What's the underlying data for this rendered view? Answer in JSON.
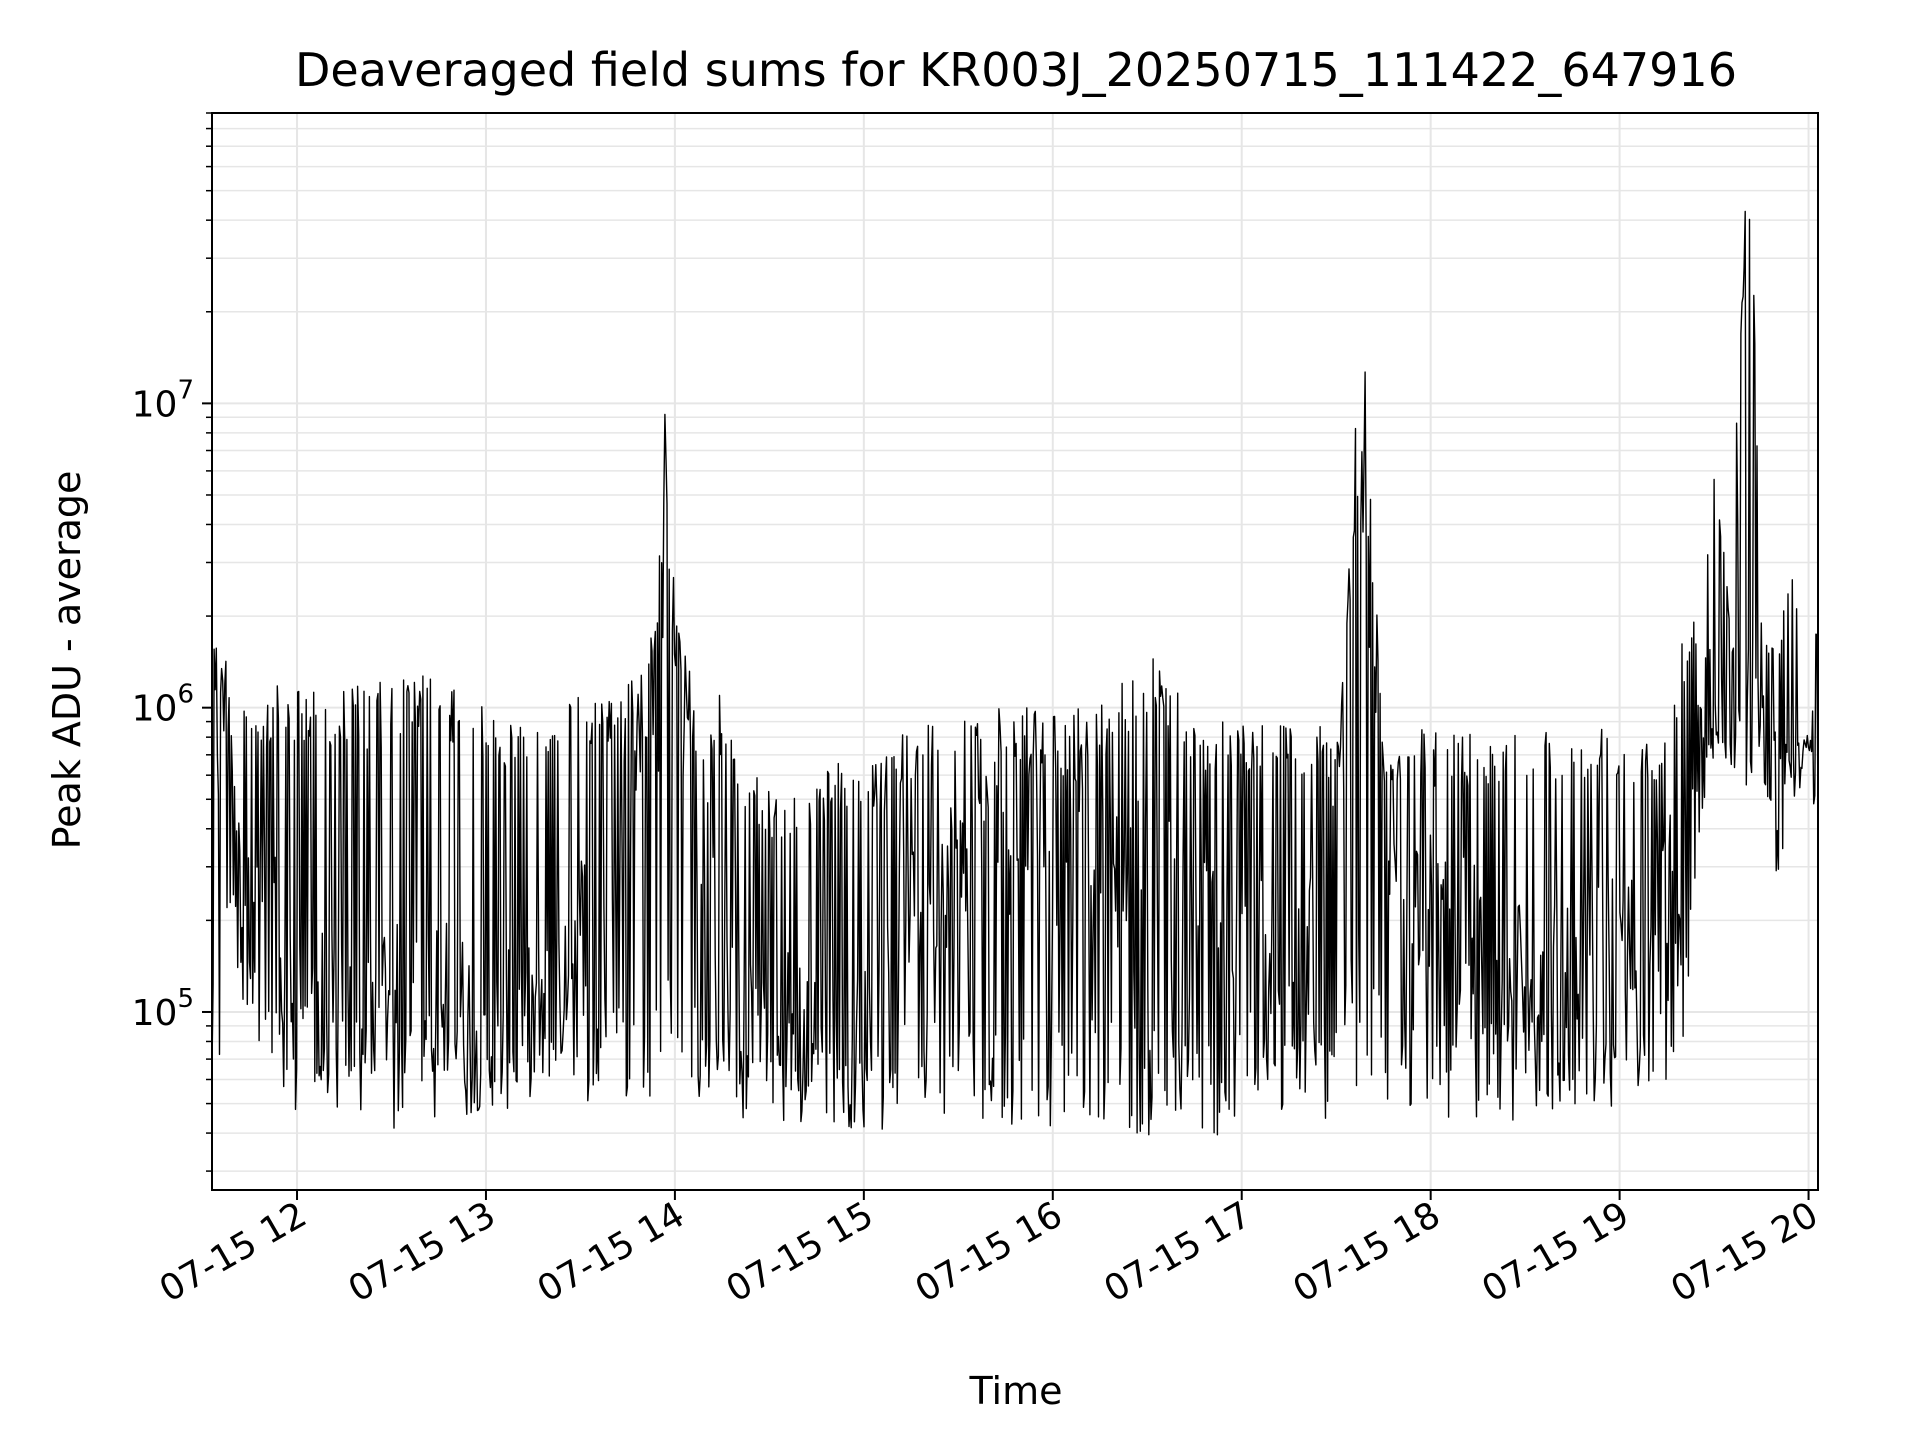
{
  "chart_data": {
    "type": "line",
    "title": "Deaveraged field sums for KR003J_20250715_111422_647916",
    "xlabel": "Time",
    "ylabel": "Peak ADU - average",
    "xlim": [
      "2025-07-15 11:33",
      "2025-07-15 20:03"
    ],
    "ylim": [
      26000,
      90000000
    ],
    "yscale": "log",
    "grid": true,
    "legend": "none",
    "colors": {
      "line": "#000000",
      "grid": "#e6e6e6",
      "axes": "#000000",
      "background": "#ffffff"
    },
    "x_ticks": [
      {
        "value": "2025-07-15 12:00",
        "label": "07-15 12"
      },
      {
        "value": "2025-07-15 13:00",
        "label": "07-15 13"
      },
      {
        "value": "2025-07-15 14:00",
        "label": "07-15 14"
      },
      {
        "value": "2025-07-15 15:00",
        "label": "07-15 15"
      },
      {
        "value": "2025-07-15 16:00",
        "label": "07-15 16"
      },
      {
        "value": "2025-07-15 17:00",
        "label": "07-15 17"
      },
      {
        "value": "2025-07-15 18:00",
        "label": "07-15 18"
      },
      {
        "value": "2025-07-15 19:00",
        "label": "07-15 19"
      },
      {
        "value": "2025-07-15 20:00",
        "label": "07-15 20"
      }
    ],
    "y_ticks": [
      {
        "value": 100000,
        "base": "10",
        "exp": "5"
      },
      {
        "value": 1000000,
        "base": "10",
        "exp": "6"
      },
      {
        "value": 10000000,
        "base": "10",
        "exp": "7"
      }
    ],
    "series": [
      {
        "color": "#000000",
        "x": [
          "2025-07-15 11:33",
          "2025-07-15 11:35",
          "2025-07-15 11:38",
          "2025-07-15 11:42",
          "2025-07-15 11:48",
          "2025-07-15 11:55",
          "2025-07-15 12:05",
          "2025-07-15 12:15",
          "2025-07-15 12:25",
          "2025-07-15 12:35",
          "2025-07-15 12:45",
          "2025-07-15 12:55",
          "2025-07-15 13:00",
          "2025-07-15 13:10",
          "2025-07-15 13:20",
          "2025-07-15 13:30",
          "2025-07-15 13:40",
          "2025-07-15 13:50",
          "2025-07-15 13:55",
          "2025-07-15 13:58",
          "2025-07-15 14:00",
          "2025-07-15 14:05",
          "2025-07-15 14:15",
          "2025-07-15 14:25",
          "2025-07-15 14:35",
          "2025-07-15 14:45",
          "2025-07-15 14:55",
          "2025-07-15 15:05",
          "2025-07-15 15:15",
          "2025-07-15 15:30",
          "2025-07-15 15:45",
          "2025-07-15 16:00",
          "2025-07-15 16:15",
          "2025-07-15 16:30",
          "2025-07-15 16:45",
          "2025-07-15 17:00",
          "2025-07-15 17:15",
          "2025-07-15 17:30",
          "2025-07-15 17:38",
          "2025-07-15 17:45",
          "2025-07-15 17:55",
          "2025-07-15 18:10",
          "2025-07-15 18:25",
          "2025-07-15 18:40",
          "2025-07-15 18:55",
          "2025-07-15 19:05",
          "2025-07-15 19:15",
          "2025-07-15 19:22",
          "2025-07-15 19:26",
          "2025-07-15 19:30",
          "2025-07-15 19:35",
          "2025-07-15 19:40",
          "2025-07-15 19:42",
          "2025-07-15 19:45",
          "2025-07-15 19:50",
          "2025-07-15 19:55",
          "2025-07-15 20:00",
          "2025-07-15 20:03"
        ],
        "y": [
          1500000,
          800000,
          1100000,
          400000,
          250000,
          150000,
          110000,
          90000,
          100000,
          150000,
          110000,
          95000,
          80000,
          90000,
          100000,
          200000,
          400000,
          900000,
          1000000,
          9200000,
          1100000,
          600000,
          200000,
          120000,
          100000,
          90000,
          70000,
          100000,
          250000,
          300000,
          400000,
          350000,
          300000,
          250000,
          200000,
          180000,
          120000,
          300000,
          8700000,
          400000,
          250000,
          180000,
          150000,
          140000,
          160000,
          200000,
          250000,
          400000,
          1000000,
          1100000,
          900000,
          62000000,
          800000,
          900000,
          750000,
          800000,
          800000,
          750000
        ],
        "min": [
          50000,
          50000,
          200000,
          120000,
          60000,
          48000,
          47000,
          45000,
          42000,
          38000,
          45000,
          45000,
          50000,
          43000,
          60000,
          48000,
          55000,
          48000,
          55000,
          48000,
          60000,
          50000,
          48000,
          40000,
          38000,
          45000,
          42000,
          40000,
          50000,
          45000,
          40000,
          42000,
          45000,
          38000,
          38000,
          40000,
          42000,
          45000,
          60000,
          50000,
          48000,
          42000,
          44000,
          45000,
          48000,
          50000,
          55000,
          80000,
          450000,
          600000,
          550000,
          550000,
          600000,
          580000,
          270000,
          500000,
          600000,
          400000
        ],
        "max": [
          1900000,
          1800000,
          1200000,
          1000000,
          1100000,
          1200000,
          1200000,
          1200000,
          1200000,
          1300000,
          1300000,
          1000000,
          1100000,
          900000,
          1000000,
          1100000,
          1200000,
          1300000,
          3100000,
          9200000,
          2100000,
          1300000,
          1100000,
          600000,
          500000,
          600000,
          700000,
          650000,
          900000,
          1000000,
          1000000,
          1000000,
          1000000,
          1700000,
          950000,
          950000,
          900000,
          900000,
          8700000,
          900000,
          850000,
          850000,
          900000,
          850000,
          900000,
          850000,
          850000,
          2500000,
          2000000,
          7500000,
          2000000,
          62000000,
          55000000,
          2000000,
          1800000,
          2800000,
          1900000,
          1800000
        ]
      }
    ]
  }
}
